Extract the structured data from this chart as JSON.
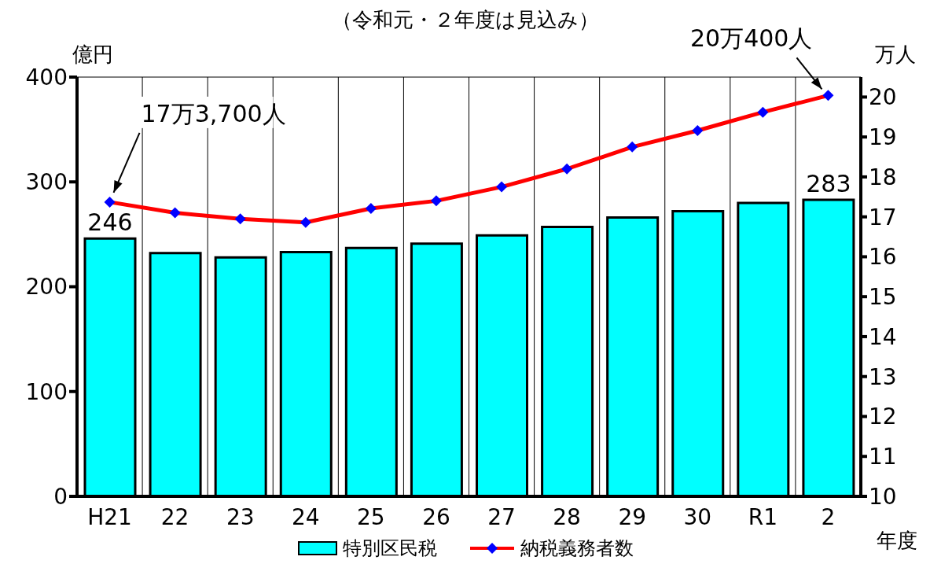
{
  "chart_data": {
    "type": "bar",
    "subtitle": "（令和元・２年度は見込み）",
    "ylabel": "億円",
    "y2label": "万人",
    "xlabel": "年度",
    "categories": [
      "H21",
      "22",
      "23",
      "24",
      "25",
      "26",
      "27",
      "28",
      "29",
      "30",
      "R1",
      "2"
    ],
    "series": [
      {
        "name": "特別区民税",
        "color": "#00ffff",
        "values": [
          246,
          232,
          228,
          233,
          237,
          241,
          249,
          257,
          266,
          272,
          280,
          283
        ],
        "value_labels": [
          "246",
          null,
          null,
          null,
          null,
          null,
          null,
          null,
          null,
          null,
          null,
          "283"
        ]
      },
      {
        "name": "納税義務者数",
        "type": "line",
        "axis": "y2",
        "color": "#ff0000",
        "marker": "diamond",
        "values": [
          17.37,
          17.1,
          16.95,
          16.86,
          17.21,
          17.4,
          17.75,
          18.2,
          18.75,
          19.16,
          19.62,
          20.04
        ]
      }
    ],
    "ylim": [
      0,
      400
    ],
    "yticks": [
      0,
      100,
      200,
      300,
      400
    ],
    "y2lim": [
      10,
      20.5
    ],
    "y2ticks": [
      10,
      11,
      12,
      13,
      14,
      15,
      16,
      17,
      18,
      19,
      20
    ],
    "grid": true,
    "legend": "bottom",
    "annotations": [
      "17万3,700人",
      "20万400人"
    ]
  }
}
